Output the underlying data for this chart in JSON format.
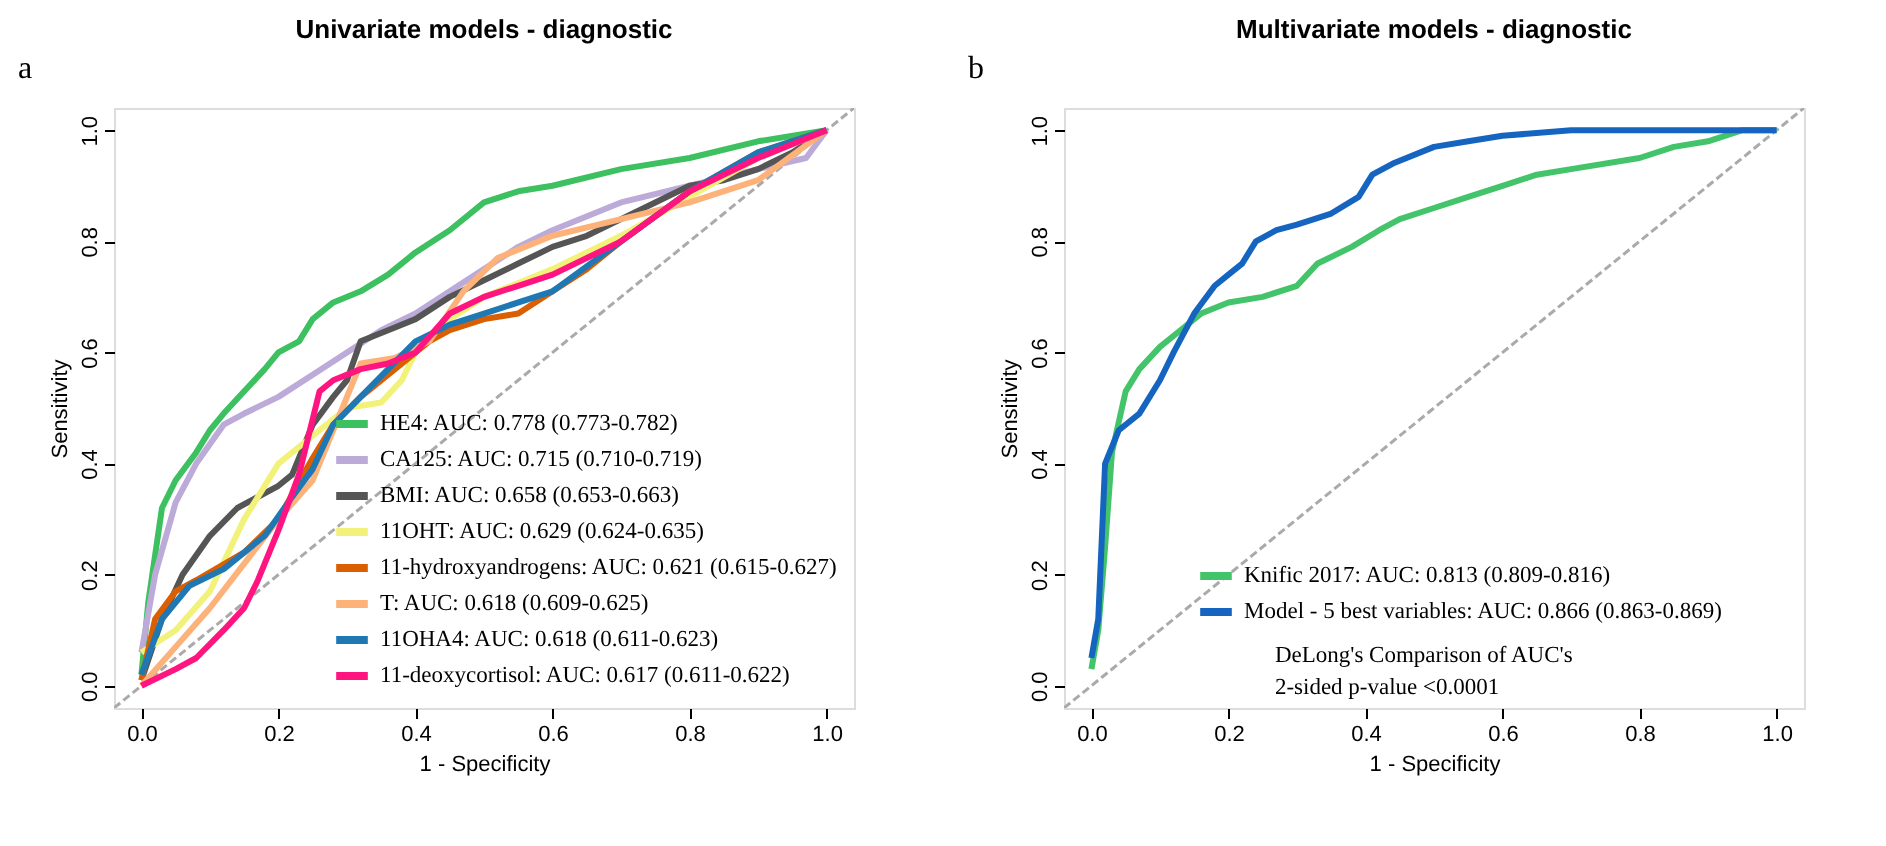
{
  "chart_data": [
    {
      "type": "line",
      "title": "Univariate models - diagnostic",
      "xlabel": "1 - Specificity",
      "ylabel": "Sensitivity",
      "annotations": [
        "a"
      ],
      "legend": "bottom right",
      "line_style": "solid",
      "grid": false,
      "xlim": [
        -0.04,
        1.04
      ],
      "ylim": [
        -0.04,
        1.04
      ],
      "xticks": [
        {
          "value": 0,
          "label": "0.0"
        },
        {
          "value": 0.2,
          "label": "0.2"
        },
        {
          "value": 0.4,
          "label": "0.4"
        },
        {
          "value": 0.6,
          "label": "0.6"
        },
        {
          "value": 0.8,
          "label": "0.8"
        },
        {
          "value": 1,
          "label": "1.0"
        }
      ],
      "yticks": [
        {
          "value": 0,
          "label": "0.0"
        },
        {
          "value": 0.2,
          "label": "0.2"
        },
        {
          "value": 0.4,
          "label": "0.4"
        },
        {
          "value": 0.6,
          "label": "0.6"
        },
        {
          "value": 0.8,
          "label": "0.8"
        },
        {
          "value": 1,
          "label": "1.0"
        }
      ],
      "series": [
        {
          "color": "#aaaaaa",
          "line_style": "dashed",
          "x": [
            -0.04,
            1.04
          ],
          "values": [
            -0.04,
            1.04
          ]
        },
        {
          "name": "HE4: AUC: 0.778 (0.773-0.782)",
          "color": "#3cc060",
          "x": [
            0,
            0.01,
            0.03,
            0.05,
            0.08,
            0.1,
            0.12,
            0.15,
            0.18,
            0.2,
            0.23,
            0.25,
            0.28,
            0.32,
            0.36,
            0.4,
            0.45,
            0.5,
            0.55,
            0.6,
            0.7,
            0.8,
            0.9,
            1
          ],
          "values": [
            0.02,
            0.15,
            0.32,
            0.37,
            0.42,
            0.46,
            0.49,
            0.53,
            0.57,
            0.6,
            0.62,
            0.66,
            0.69,
            0.71,
            0.74,
            0.78,
            0.82,
            0.87,
            0.89,
            0.9,
            0.93,
            0.95,
            0.98,
            1
          ]
        },
        {
          "name": "CA125: AUC: 0.715 (0.710-0.719)",
          "color": "#bcaad8",
          "x": [
            0,
            0.02,
            0.05,
            0.08,
            0.12,
            0.15,
            0.2,
            0.25,
            0.3,
            0.35,
            0.4,
            0.45,
            0.5,
            0.55,
            0.6,
            0.7,
            0.8,
            0.9,
            0.97,
            1
          ],
          "values": [
            0.06,
            0.2,
            0.33,
            0.4,
            0.47,
            0.49,
            0.52,
            0.56,
            0.6,
            0.64,
            0.67,
            0.71,
            0.75,
            0.79,
            0.82,
            0.87,
            0.9,
            0.93,
            0.95,
            1
          ]
        },
        {
          "name": "BMI: AUC: 0.658 (0.653-0.663)",
          "color": "#555555",
          "x": [
            0,
            0.03,
            0.06,
            0.1,
            0.14,
            0.2,
            0.22,
            0.25,
            0.28,
            0.3,
            0.32,
            0.36,
            0.4,
            0.45,
            0.5,
            0.55,
            0.6,
            0.65,
            0.7,
            0.75,
            0.8,
            0.85,
            0.9,
            0.95,
            1
          ],
          "values": [
            0.01,
            0.12,
            0.2,
            0.27,
            0.32,
            0.36,
            0.38,
            0.47,
            0.52,
            0.55,
            0.62,
            0.64,
            0.66,
            0.7,
            0.73,
            0.76,
            0.79,
            0.81,
            0.84,
            0.87,
            0.9,
            0.91,
            0.93,
            0.96,
            1
          ]
        },
        {
          "name": "11OHT: AUC: 0.629 (0.624-0.635)",
          "color": "#f2f27a",
          "x": [
            0,
            0.05,
            0.1,
            0.15,
            0.2,
            0.25,
            0.3,
            0.35,
            0.38,
            0.4,
            0.45,
            0.5,
            0.6,
            0.7,
            0.8,
            0.9,
            1
          ],
          "values": [
            0.06,
            0.1,
            0.17,
            0.3,
            0.4,
            0.45,
            0.5,
            0.51,
            0.55,
            0.6,
            0.66,
            0.7,
            0.75,
            0.81,
            0.88,
            0.95,
            1
          ]
        },
        {
          "name": "11-hydroxyandrogens: AUC: 0.621 (0.615-0.627)",
          "color": "#d95f02",
          "x": [
            0,
            0.02,
            0.05,
            0.08,
            0.15,
            0.2,
            0.25,
            0.28,
            0.32,
            0.38,
            0.42,
            0.45,
            0.5,
            0.55,
            0.6,
            0.65,
            0.7,
            0.8,
            0.9,
            1
          ],
          "values": [
            0.01,
            0.12,
            0.17,
            0.19,
            0.24,
            0.3,
            0.41,
            0.47,
            0.52,
            0.58,
            0.62,
            0.64,
            0.66,
            0.67,
            0.71,
            0.75,
            0.8,
            0.89,
            0.96,
            1
          ]
        },
        {
          "name": "T: AUC: 0.618 (0.609-0.625)",
          "color": "#fdb27a",
          "x": [
            0,
            0.05,
            0.1,
            0.15,
            0.2,
            0.25,
            0.28,
            0.32,
            0.37,
            0.42,
            0.47,
            0.52,
            0.6,
            0.7,
            0.8,
            0.9,
            1
          ],
          "values": [
            0.0,
            0.07,
            0.14,
            0.22,
            0.3,
            0.37,
            0.46,
            0.58,
            0.59,
            0.62,
            0.71,
            0.77,
            0.81,
            0.84,
            0.87,
            0.91,
            1
          ]
        },
        {
          "name": "11OHA4: AUC: 0.618 (0.611-0.623)",
          "color": "#1f78b4",
          "x": [
            0,
            0.03,
            0.07,
            0.12,
            0.18,
            0.22,
            0.25,
            0.28,
            0.32,
            0.36,
            0.4,
            0.45,
            0.5,
            0.6,
            0.7,
            0.8,
            0.9,
            1
          ],
          "values": [
            0.02,
            0.12,
            0.18,
            0.21,
            0.27,
            0.34,
            0.39,
            0.47,
            0.52,
            0.57,
            0.62,
            0.65,
            0.67,
            0.71,
            0.8,
            0.89,
            0.96,
            1
          ]
        },
        {
          "name": "11-deoxycortisol: AUC: 0.617 (0.611-0.622)",
          "color": "#ff1480",
          "x": [
            0,
            0.05,
            0.08,
            0.12,
            0.15,
            0.17,
            0.2,
            0.23,
            0.26,
            0.28,
            0.32,
            0.36,
            0.4,
            0.45,
            0.5,
            0.55,
            0.6,
            0.7,
            0.8,
            0.9,
            1
          ],
          "values": [
            0,
            0.03,
            0.05,
            0.1,
            0.14,
            0.19,
            0.28,
            0.38,
            0.53,
            0.55,
            0.57,
            0.58,
            0.6,
            0.67,
            0.7,
            0.72,
            0.74,
            0.8,
            0.89,
            0.95,
            1
          ]
        }
      ]
    },
    {
      "type": "line",
      "title": "Multivariate models - diagnostic",
      "xlabel": "1 - Specificity",
      "ylabel": "Sensitivity",
      "annotations": [
        "b",
        "DeLong's Comparison of AUC's",
        "2-sided p-value <0.0001"
      ],
      "legend": "bottom right",
      "line_style": "solid",
      "grid": false,
      "xlim": [
        -0.04,
        1.04
      ],
      "ylim": [
        -0.04,
        1.04
      ],
      "xticks": [
        {
          "value": 0,
          "label": "0.0"
        },
        {
          "value": 0.2,
          "label": "0.2"
        },
        {
          "value": 0.4,
          "label": "0.4"
        },
        {
          "value": 0.6,
          "label": "0.6"
        },
        {
          "value": 0.8,
          "label": "0.8"
        },
        {
          "value": 1,
          "label": "1.0"
        }
      ],
      "yticks": [
        {
          "value": 0,
          "label": "0.0"
        },
        {
          "value": 0.2,
          "label": "0.2"
        },
        {
          "value": 0.4,
          "label": "0.4"
        },
        {
          "value": 0.6,
          "label": "0.6"
        },
        {
          "value": 0.8,
          "label": "0.8"
        },
        {
          "value": 1,
          "label": "1.0"
        }
      ],
      "series": [
        {
          "color": "#aaaaaa",
          "line_style": "dashed",
          "x": [
            -0.04,
            1.04
          ],
          "values": [
            -0.04,
            1.04
          ]
        },
        {
          "name": "Knific 2017: AUC: 0.813 (0.809-0.816)",
          "color": "#44c46a",
          "x": [
            0,
            0.01,
            0.02,
            0.03,
            0.05,
            0.07,
            0.1,
            0.13,
            0.16,
            0.2,
            0.25,
            0.3,
            0.33,
            0.38,
            0.42,
            0.45,
            0.5,
            0.55,
            0.6,
            0.65,
            0.7,
            0.8,
            0.85,
            0.9,
            0.95,
            1
          ],
          "values": [
            0.03,
            0.1,
            0.25,
            0.42,
            0.53,
            0.57,
            0.61,
            0.64,
            0.67,
            0.69,
            0.7,
            0.72,
            0.76,
            0.79,
            0.82,
            0.84,
            0.86,
            0.88,
            0.9,
            0.92,
            0.93,
            0.95,
            0.97,
            0.98,
            1,
            1
          ]
        },
        {
          "name": "Model - 5 best variables: AUC: 0.866 (0.863-0.869)",
          "color": "#1565c0",
          "x": [
            0,
            0.01,
            0.02,
            0.04,
            0.07,
            0.1,
            0.12,
            0.15,
            0.18,
            0.2,
            0.22,
            0.24,
            0.27,
            0.3,
            0.35,
            0.39,
            0.41,
            0.44,
            0.5,
            0.55,
            0.6,
            0.7,
            1
          ],
          "values": [
            0.05,
            0.12,
            0.4,
            0.46,
            0.49,
            0.55,
            0.6,
            0.67,
            0.72,
            0.74,
            0.76,
            0.8,
            0.82,
            0.83,
            0.85,
            0.88,
            0.92,
            0.94,
            0.97,
            0.98,
            0.99,
            1,
            1
          ]
        }
      ]
    }
  ]
}
